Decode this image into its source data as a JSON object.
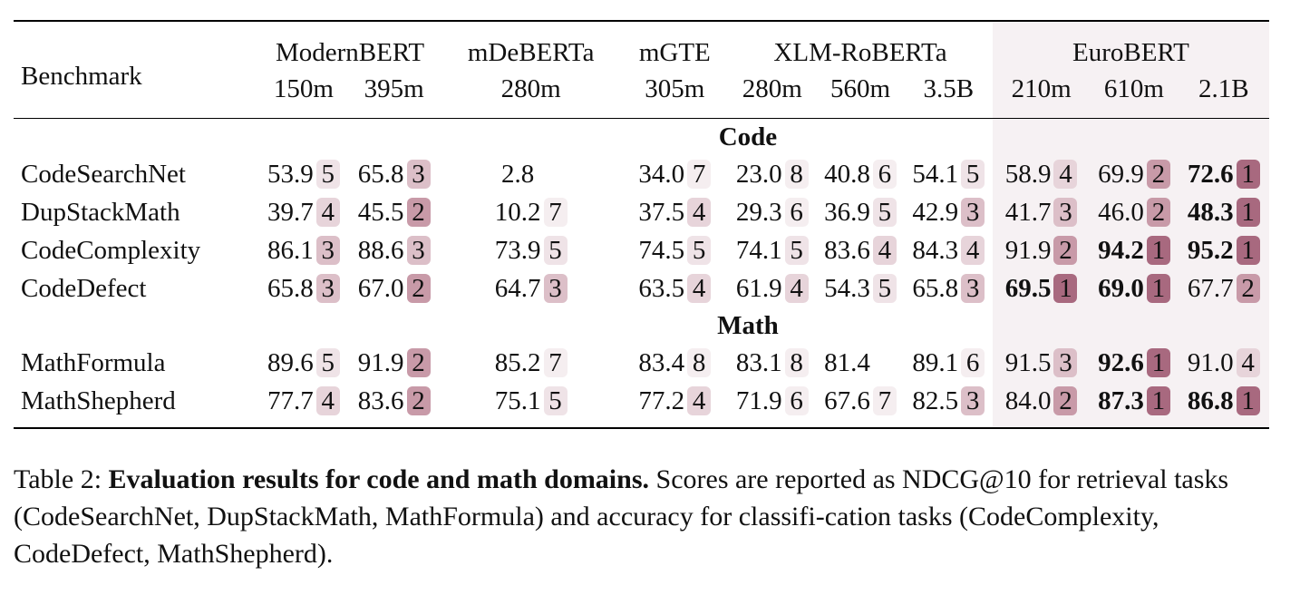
{
  "table": {
    "benchmark_header": "Benchmark",
    "models": [
      {
        "name": "ModernBERT",
        "sizes": [
          "150m",
          "395m"
        ]
      },
      {
        "name": "mDeBERTa",
        "sizes": [
          "280m"
        ]
      },
      {
        "name": "mGTE",
        "sizes": [
          "305m"
        ]
      },
      {
        "name": "XLM-RoBERTa",
        "sizes": [
          "280m",
          "560m",
          "3.5B"
        ]
      },
      {
        "name": "EuroBERT",
        "sizes": [
          "210m",
          "610m",
          "2.1B"
        ]
      }
    ],
    "sections": [
      {
        "title": "Code",
        "rows": [
          {
            "name": "CodeSearchNet",
            "cells": [
              [
                "53.9",
                "5",
                false
              ],
              [
                "65.8",
                "3",
                false
              ],
              [
                "2.8",
                "",
                false
              ],
              [
                "34.0",
                "7",
                false
              ],
              [
                "23.0",
                "8",
                false
              ],
              [
                "40.8",
                "6",
                false
              ],
              [
                "54.1",
                "5",
                false
              ],
              [
                "58.9",
                "4",
                false
              ],
              [
                "69.9",
                "2",
                false
              ],
              [
                "72.6",
                "1",
                true
              ]
            ]
          },
          {
            "name": "DupStackMath",
            "cells": [
              [
                "39.7",
                "4",
                false
              ],
              [
                "45.5",
                "2",
                false
              ],
              [
                "10.2",
                "7",
                false
              ],
              [
                "37.5",
                "4",
                false
              ],
              [
                "29.3",
                "6",
                false
              ],
              [
                "36.9",
                "5",
                false
              ],
              [
                "42.9",
                "3",
                false
              ],
              [
                "41.7",
                "3",
                false
              ],
              [
                "46.0",
                "2",
                false
              ],
              [
                "48.3",
                "1",
                true
              ]
            ]
          },
          {
            "name": "CodeComplexity",
            "cells": [
              [
                "86.1",
                "3",
                false
              ],
              [
                "88.6",
                "3",
                false
              ],
              [
                "73.9",
                "5",
                false
              ],
              [
                "74.5",
                "5",
                false
              ],
              [
                "74.1",
                "5",
                false
              ],
              [
                "83.6",
                "4",
                false
              ],
              [
                "84.3",
                "4",
                false
              ],
              [
                "91.9",
                "2",
                false
              ],
              [
                "94.2",
                "1",
                true
              ],
              [
                "95.2",
                "1",
                true
              ]
            ]
          },
          {
            "name": "CodeDefect",
            "cells": [
              [
                "65.8",
                "3",
                false
              ],
              [
                "67.0",
                "2",
                false
              ],
              [
                "64.7",
                "3",
                false
              ],
              [
                "63.5",
                "4",
                false
              ],
              [
                "61.9",
                "4",
                false
              ],
              [
                "54.3",
                "5",
                false
              ],
              [
                "65.8",
                "3",
                false
              ],
              [
                "69.5",
                "1",
                true
              ],
              [
                "69.0",
                "1",
                true
              ],
              [
                "67.7",
                "2",
                false
              ]
            ]
          }
        ]
      },
      {
        "title": "Math",
        "rows": [
          {
            "name": "MathFormula",
            "cells": [
              [
                "89.6",
                "5",
                false
              ],
              [
                "91.9",
                "2",
                false
              ],
              [
                "85.2",
                "7",
                false
              ],
              [
                "83.4",
                "8",
                false
              ],
              [
                "83.1",
                "8",
                false
              ],
              [
                "81.4",
                "",
                false
              ],
              [
                "89.1",
                "6",
                false
              ],
              [
                "91.5",
                "3",
                false
              ],
              [
                "92.6",
                "1",
                true
              ],
              [
                "91.0",
                "4",
                false
              ]
            ]
          },
          {
            "name": "MathShepherd",
            "cells": [
              [
                "77.7",
                "4",
                false
              ],
              [
                "83.6",
                "2",
                false
              ],
              [
                "75.1",
                "5",
                false
              ],
              [
                "77.2",
                "4",
                false
              ],
              [
                "71.9",
                "6",
                false
              ],
              [
                "67.6",
                "7",
                false
              ],
              [
                "82.5",
                "3",
                false
              ],
              [
                "84.0",
                "2",
                false
              ],
              [
                "87.3",
                "1",
                true
              ],
              [
                "86.8",
                "1",
                true
              ]
            ]
          }
        ]
      }
    ]
  },
  "caption": {
    "label": "Table 2:",
    "title": "Evaluation results for code and math domains.",
    "text": " Scores are reported as NDCG@10 for retrieval tasks (CodeSearchNet, DupStackMath, MathFormula) and accuracy for classifi-cation tasks (CodeComplexity, CodeDefect, MathShepherd)."
  },
  "colors": {
    "rank1": "#a8697f",
    "rank2": "#c89aa8",
    "rank3": "#dcbfc8",
    "highlight_bg": "#f6f1f3"
  }
}
